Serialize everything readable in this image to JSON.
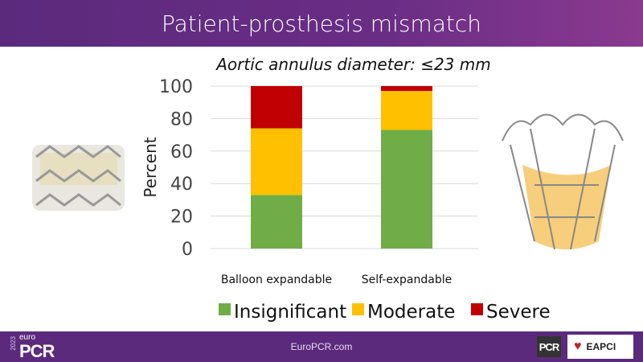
{
  "header": {
    "title": "Patient-prosthesis mismatch"
  },
  "chart_data": {
    "type": "bar",
    "stacked": true,
    "title": "Aortic annulus diameter: ≤23 mm",
    "xlabel": "",
    "ylabel": "Percent",
    "ylim": [
      0,
      100
    ],
    "yticks": [
      0,
      20,
      40,
      60,
      80,
      100
    ],
    "grid": true,
    "legend_position": "bottom",
    "categories": [
      "Balloon expandable",
      "Self-expandable"
    ],
    "series": [
      {
        "name": "Insignificant",
        "color": "#70ad47",
        "values": [
          33,
          73
        ]
      },
      {
        "name": "Moderate",
        "color": "#ffc000",
        "values": [
          41,
          24
        ]
      },
      {
        "name": "Severe",
        "color": "#c00000",
        "values": [
          26,
          3
        ]
      }
    ]
  },
  "footer": {
    "site": "EuroPCR.com",
    "year": "2023",
    "logo_euro": "euro",
    "logo_pcr": "PCR",
    "pcr_badge": "PCR",
    "eapci": "EAPCI"
  }
}
